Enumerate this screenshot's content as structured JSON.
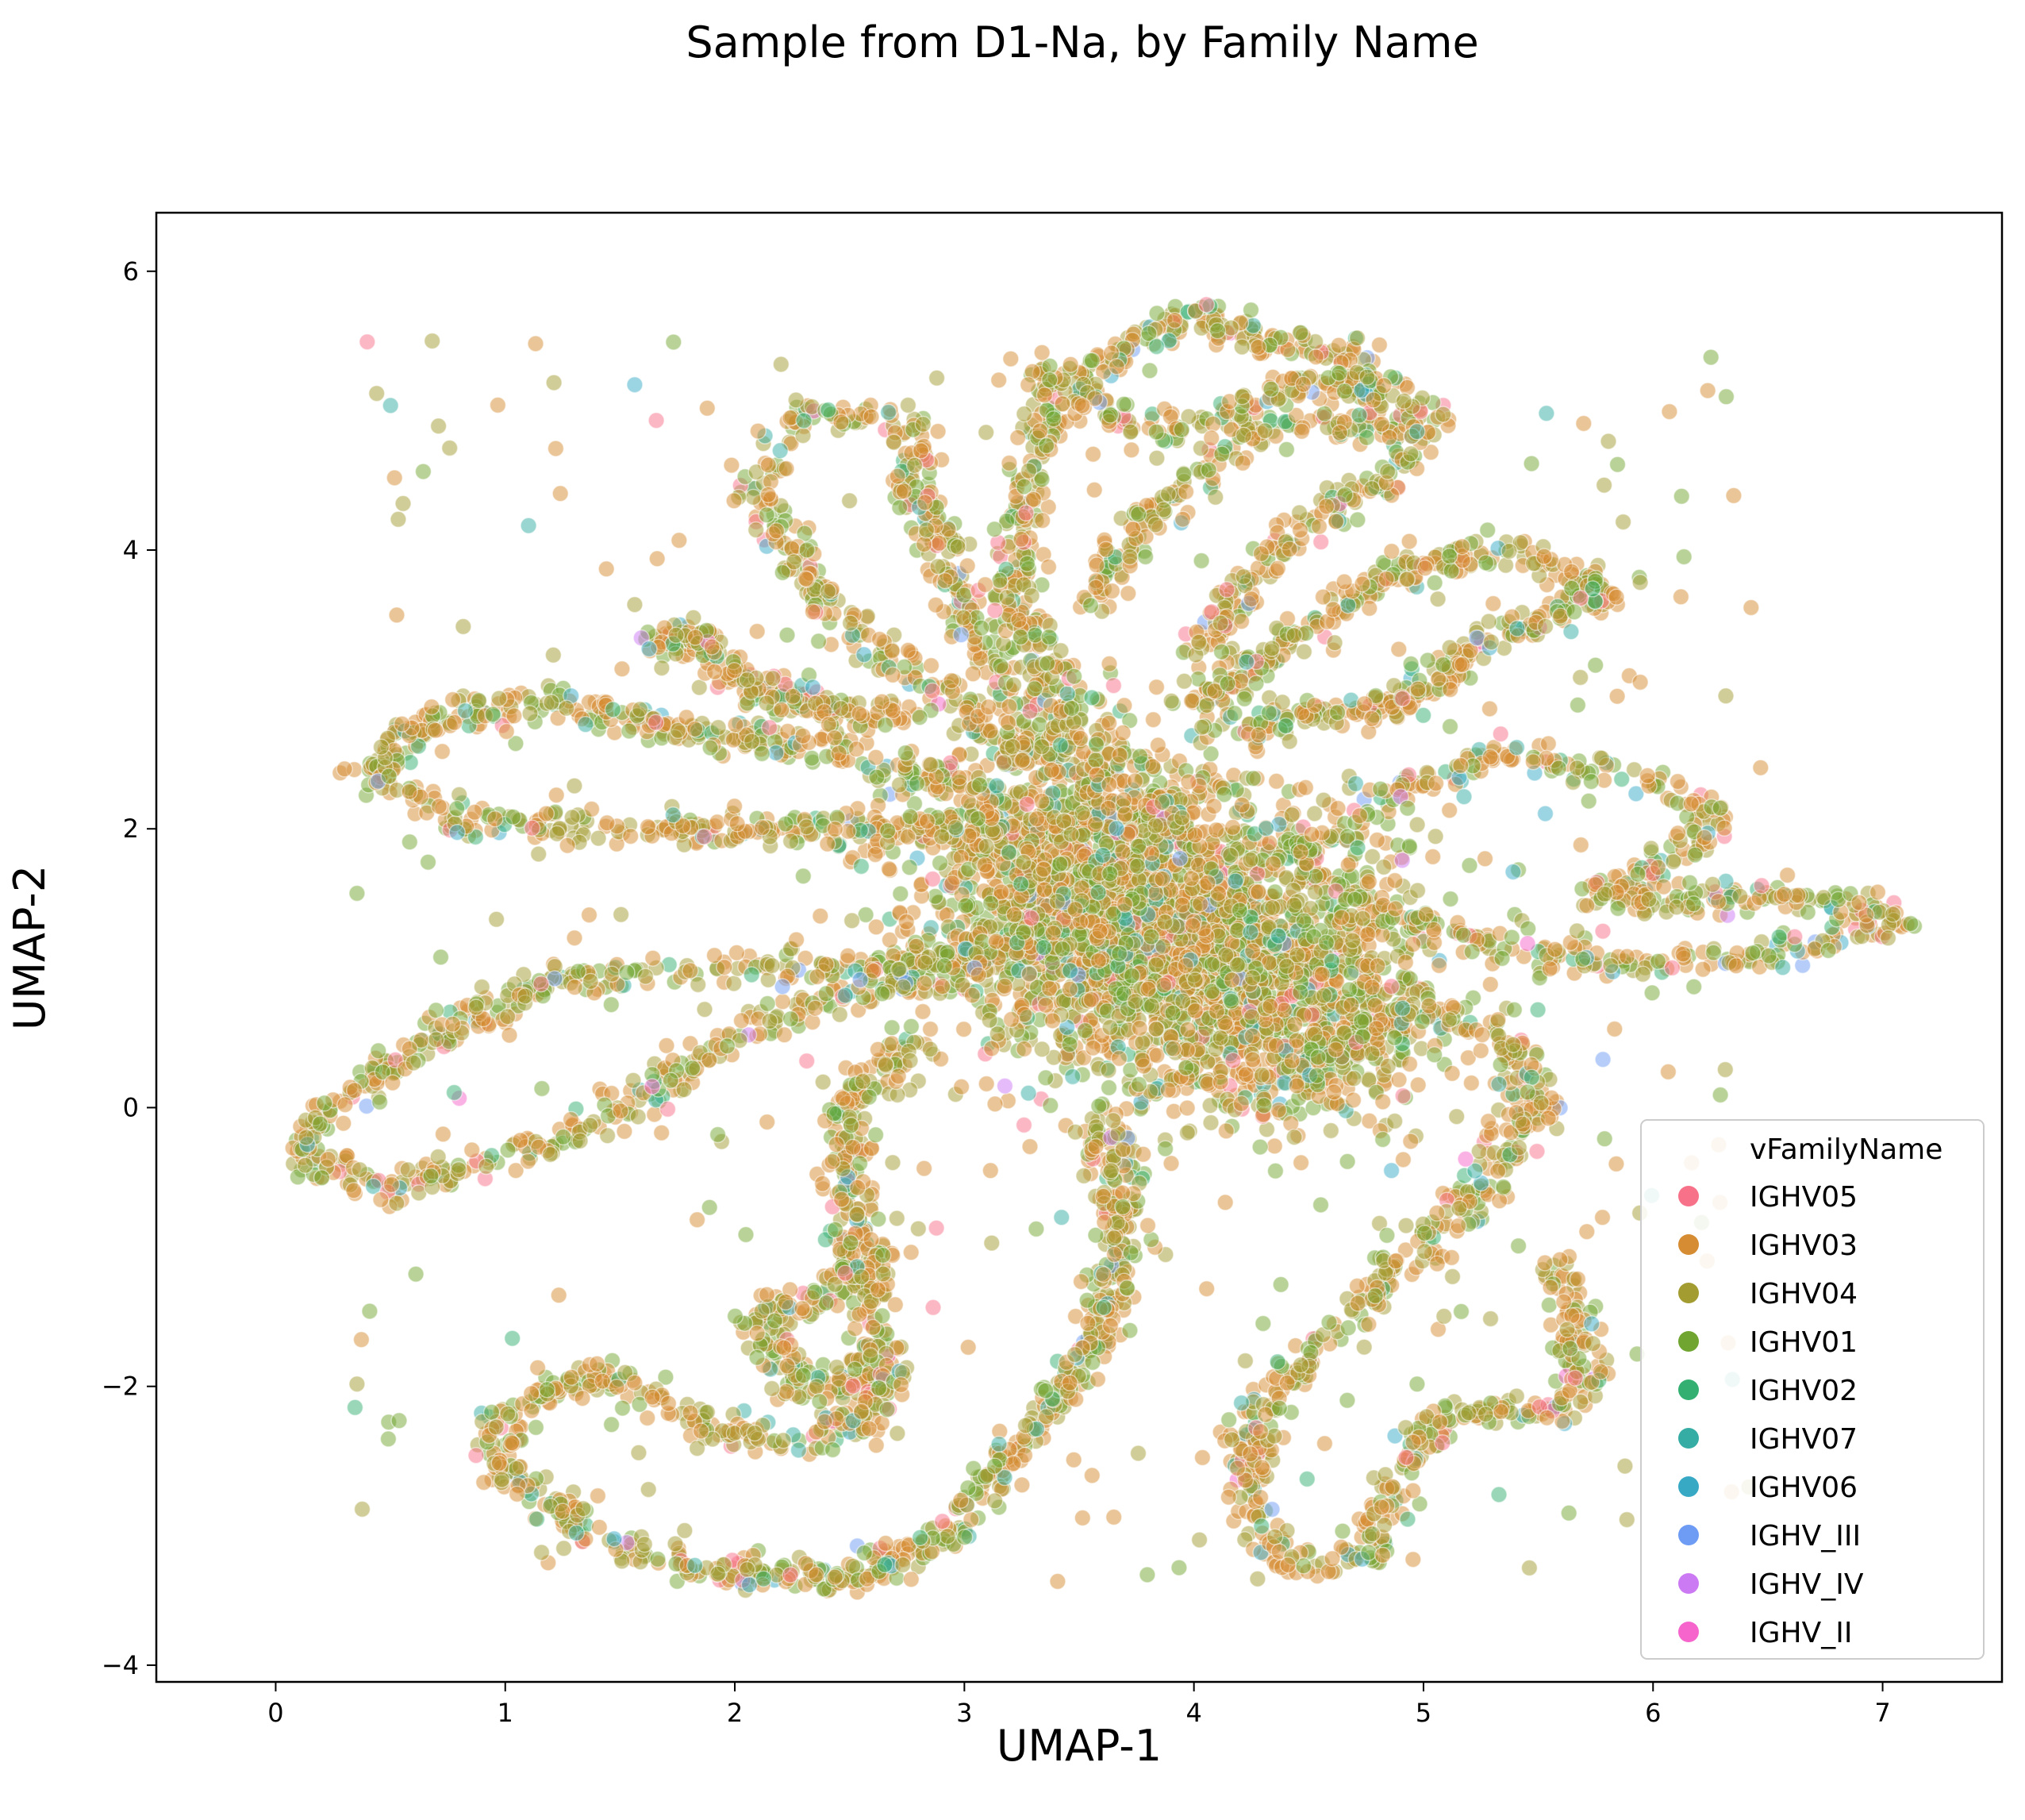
{
  "chart_data": {
    "type": "scatter",
    "title": "Sample from D1-Na, by Family Name",
    "xlabel": "UMAP-1",
    "ylabel": "UMAP-2",
    "xlim": [
      -0.52,
      7.52
    ],
    "ylim": [
      -4.12,
      6.42
    ],
    "xticks": [
      "0",
      "1",
      "2",
      "3",
      "4",
      "5",
      "6",
      "7"
    ],
    "yticks": [
      "−4",
      "−2",
      "0",
      "2",
      "4",
      "6"
    ],
    "grid": false,
    "legend_placement": "lower-right",
    "legend_title": "vFamilyName",
    "point_alpha": 0.5,
    "series": [
      {
        "name": "IGHV05",
        "color": "#f77189"
      },
      {
        "name": "IGHV03",
        "color": "#d58c32"
      },
      {
        "name": "IGHV04",
        "color": "#a39c31"
      },
      {
        "name": "IGHV01",
        "color": "#71a531"
      },
      {
        "name": "IGHV02",
        "color": "#33b071"
      },
      {
        "name": "IGHV07",
        "color": "#36ada4"
      },
      {
        "name": "IGHV06",
        "color": "#38a9c5"
      },
      {
        "name": "IGHV_III",
        "color": "#6e9bf4"
      },
      {
        "name": "IGHV_IV",
        "color": "#cc7af4"
      },
      {
        "name": "IGHV_II",
        "color": "#f565cc"
      }
    ],
    "point_clusters": [
      {
        "x": 4.0,
        "y": 1.2,
        "sx": 0.45,
        "sy": 0.55,
        "n": 1800
      },
      {
        "x": 3.4,
        "y": 1.7,
        "sx": 0.35,
        "sy": 0.5,
        "n": 900
      },
      {
        "x": 4.4,
        "y": 0.6,
        "sx": 0.35,
        "sy": 0.4,
        "n": 500
      }
    ],
    "point_paths": [
      {
        "n": 500,
        "w": 0.06,
        "pts": [
          [
            4.0,
            2.0
          ],
          [
            3.2,
            2.6
          ],
          [
            2.4,
            3.6
          ],
          [
            2.1,
            4.4
          ],
          [
            2.3,
            5.0
          ],
          [
            2.8,
            4.9
          ],
          [
            2.8,
            4.4
          ],
          [
            3.0,
            3.5
          ],
          [
            3.4,
            2.6
          ]
        ]
      },
      {
        "n": 600,
        "w": 0.06,
        "pts": [
          [
            3.6,
            2.4
          ],
          [
            3.2,
            3.6
          ],
          [
            3.3,
            4.8
          ],
          [
            3.6,
            5.3
          ],
          [
            4.0,
            5.7
          ],
          [
            4.3,
            5.5
          ],
          [
            4.7,
            5.4
          ],
          [
            4.8,
            4.9
          ],
          [
            4.3,
            4.9
          ],
          [
            4.0,
            4.5
          ],
          [
            3.7,
            4.1
          ],
          [
            3.6,
            3.6
          ]
        ]
      },
      {
        "n": 350,
        "w": 0.06,
        "pts": [
          [
            3.3,
            5.3
          ],
          [
            3.7,
            4.9
          ],
          [
            4.1,
            4.9
          ],
          [
            4.4,
            5.2
          ],
          [
            4.8,
            5.2
          ],
          [
            5.0,
            5.0
          ],
          [
            4.9,
            4.6
          ],
          [
            4.5,
            4.2
          ],
          [
            4.2,
            3.7
          ],
          [
            4.0,
            3.2
          ]
        ]
      },
      {
        "n": 450,
        "w": 0.06,
        "pts": [
          [
            4.0,
            2.9
          ],
          [
            4.4,
            3.3
          ],
          [
            4.8,
            3.8
          ],
          [
            5.4,
            4.0
          ],
          [
            5.8,
            3.7
          ],
          [
            5.6,
            3.5
          ],
          [
            5.3,
            3.4
          ],
          [
            4.9,
            2.9
          ],
          [
            4.5,
            2.8
          ],
          [
            4.1,
            2.7
          ]
        ]
      },
      {
        "n": 500,
        "w": 0.06,
        "pts": [
          [
            4.5,
            1.8
          ],
          [
            4.9,
            2.3
          ],
          [
            5.3,
            2.5
          ],
          [
            5.9,
            2.4
          ],
          [
            6.3,
            2.1
          ],
          [
            6.0,
            1.7
          ],
          [
            5.7,
            1.5
          ],
          [
            6.2,
            1.5
          ],
          [
            6.8,
            1.5
          ],
          [
            7.1,
            1.3
          ],
          [
            6.5,
            1.1
          ],
          [
            5.9,
            1.0
          ],
          [
            5.2,
            1.2
          ],
          [
            4.6,
            1.5
          ]
        ]
      },
      {
        "n": 550,
        "w": 0.06,
        "pts": [
          [
            3.2,
            2.0
          ],
          [
            2.4,
            2.0
          ],
          [
            1.5,
            2.0
          ],
          [
            0.8,
            2.05
          ],
          [
            0.4,
            2.4
          ],
          [
            0.7,
            2.8
          ],
          [
            1.2,
            2.9
          ],
          [
            1.8,
            2.7
          ],
          [
            2.3,
            2.6
          ],
          [
            2.8,
            2.4
          ],
          [
            3.2,
            2.2
          ]
        ]
      },
      {
        "n": 200,
        "w": 0.06,
        "pts": [
          [
            1.6,
            3.3
          ],
          [
            1.8,
            3.4
          ],
          [
            2.0,
            3.1
          ],
          [
            2.3,
            2.9
          ],
          [
            2.7,
            2.8
          ]
        ]
      },
      {
        "n": 600,
        "w": 0.06,
        "pts": [
          [
            3.3,
            1.2
          ],
          [
            2.6,
            1.0
          ],
          [
            2.0,
            1.0
          ],
          [
            1.2,
            0.9
          ],
          [
            0.7,
            0.5
          ],
          [
            0.3,
            0.1
          ],
          [
            0.1,
            -0.3
          ],
          [
            0.5,
            -0.6
          ],
          [
            0.9,
            -0.4
          ],
          [
            1.3,
            -0.2
          ],
          [
            1.6,
            0.1
          ],
          [
            2.0,
            0.5
          ],
          [
            2.4,
            0.8
          ],
          [
            3.0,
            1.0
          ]
        ]
      },
      {
        "n": 450,
        "w": 0.06,
        "pts": [
          [
            2.8,
            0.5
          ],
          [
            2.5,
            0.0
          ],
          [
            2.5,
            -0.7
          ],
          [
            2.5,
            -1.3
          ],
          [
            2.1,
            -1.5
          ],
          [
            2.3,
            -2.0
          ],
          [
            2.6,
            -2.0
          ],
          [
            2.6,
            -1.5
          ],
          [
            2.6,
            -1.0
          ]
        ]
      },
      {
        "n": 800,
        "w": 0.06,
        "pts": [
          [
            3.6,
            0.0
          ],
          [
            3.7,
            -0.9
          ],
          [
            3.6,
            -1.6
          ],
          [
            3.2,
            -2.5
          ],
          [
            2.9,
            -3.1
          ],
          [
            2.5,
            -3.4
          ],
          [
            1.8,
            -3.3
          ],
          [
            1.3,
            -3.0
          ],
          [
            1.0,
            -2.6
          ],
          [
            1.0,
            -2.2
          ],
          [
            1.4,
            -1.9
          ],
          [
            1.9,
            -2.3
          ],
          [
            2.3,
            -2.4
          ],
          [
            2.6,
            -2.2
          ],
          [
            2.7,
            -1.9
          ]
        ]
      },
      {
        "n": 700,
        "w": 0.06,
        "pts": [
          [
            4.5,
            0.3
          ],
          [
            4.9,
            0.7
          ],
          [
            5.3,
            0.6
          ],
          [
            5.5,
            0.1
          ],
          [
            5.3,
            -0.5
          ],
          [
            5.0,
            -0.9
          ],
          [
            4.7,
            -1.5
          ],
          [
            4.3,
            -2.1
          ],
          [
            4.2,
            -2.7
          ],
          [
            4.4,
            -3.3
          ],
          [
            4.8,
            -3.2
          ],
          [
            4.9,
            -2.6
          ],
          [
            5.1,
            -2.2
          ],
          [
            5.6,
            -2.2
          ],
          [
            5.7,
            -1.9
          ],
          [
            5.6,
            -1.1
          ]
        ]
      }
    ],
    "point_scatter": {
      "n": 350,
      "xrange": [
        0.3,
        6.5
      ],
      "yrange": [
        -3.4,
        5.5
      ]
    }
  }
}
